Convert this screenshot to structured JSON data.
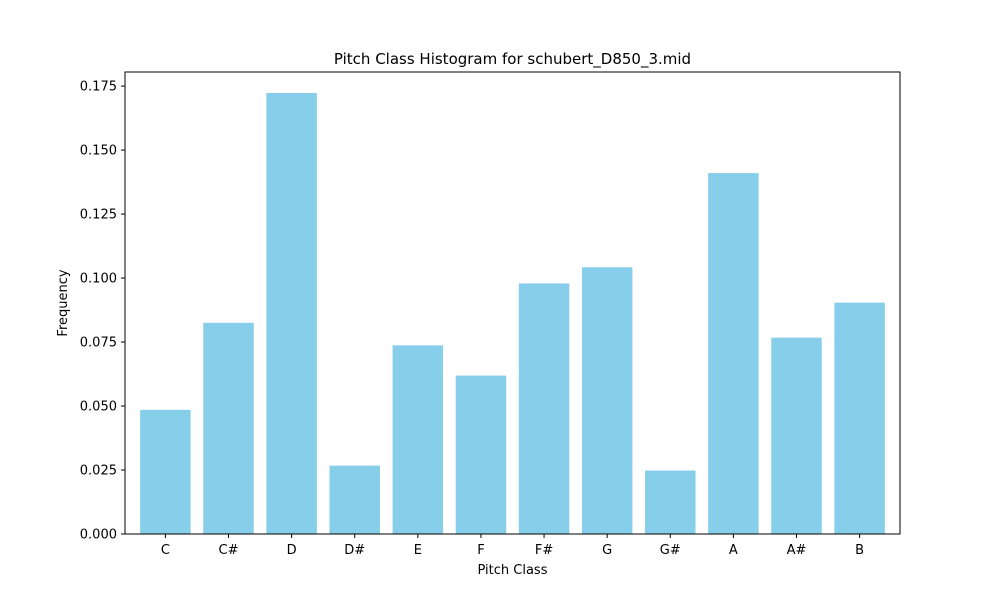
{
  "chart_data": {
    "type": "bar",
    "title": "Pitch Class Histogram for schubert_D850_3.mid",
    "xlabel": "Pitch Class",
    "ylabel": "Frequency",
    "categories": [
      "C",
      "C#",
      "D",
      "D#",
      "E",
      "F",
      "F#",
      "G",
      "G#",
      "A",
      "A#",
      "B"
    ],
    "values": [
      0.0485,
      0.0825,
      0.1723,
      0.0267,
      0.0737,
      0.0619,
      0.0979,
      0.1042,
      0.0248,
      0.141,
      0.0767,
      0.0904
    ],
    "ylim": [
      0,
      0.1805
    ],
    "yticks": [
      0.0,
      0.025,
      0.05,
      0.075,
      0.1,
      0.125,
      0.15,
      0.175
    ],
    "ytick_labels": [
      "0.000",
      "0.025",
      "0.050",
      "0.075",
      "0.100",
      "0.125",
      "0.150",
      "0.175"
    ],
    "bar_color": "#87ceeb",
    "grid": false,
    "legend": "none"
  }
}
